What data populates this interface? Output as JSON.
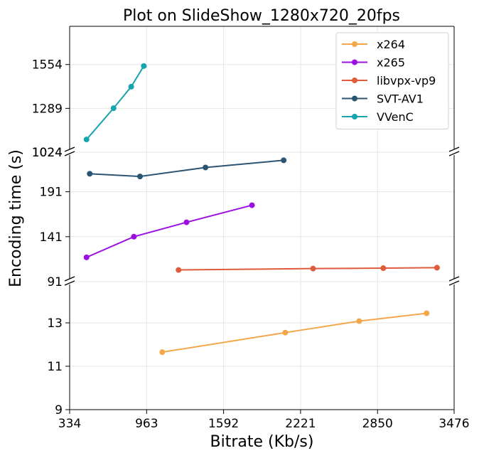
{
  "chart_data": {
    "type": "line",
    "title": "Plot on SlideShow_1280x720_20fps",
    "xlabel": "Bitrate (Kb/s)",
    "ylabel": "Encoding time (s)",
    "xlim": [
      334,
      3476
    ],
    "xticks": [
      "334",
      "963",
      "1592",
      "2221",
      "2850",
      "3476"
    ],
    "grid": true,
    "legend_position": "top-right",
    "broken_y_axis": true,
    "panels": [
      {
        "name": "top",
        "ylim": [
          1024,
          1785
        ],
        "yticks": [
          "1024",
          "1289",
          "1554"
        ]
      },
      {
        "name": "middle",
        "ylim": [
          91,
          235
        ],
        "yticks": [
          "91",
          "141",
          "191"
        ],
        "top_tick_label": "1024"
      },
      {
        "name": "bottom",
        "ylim": [
          9,
          14.9
        ],
        "yticks": [
          "9",
          "11",
          "13"
        ]
      }
    ],
    "series": [
      {
        "name": "x264",
        "color": "#F4A64A",
        "panel": "bottom",
        "x": [
          1091,
          2096,
          2700,
          3251
        ],
        "y": [
          11.65,
          12.55,
          13.08,
          13.44
        ]
      },
      {
        "name": "x265",
        "color": "#9B0FE0",
        "panel": "middle",
        "x": [
          472,
          859,
          1289,
          1824
        ],
        "y": [
          118,
          141,
          157,
          176
        ]
      },
      {
        "name": "libvpx-vp9",
        "color": "#E05A3C",
        "panel": "middle",
        "x": [
          1224,
          2323,
          2897,
          3336
        ],
        "y": [
          104,
          105.5,
          106,
          106.5
        ]
      },
      {
        "name": "SVT-AV1",
        "color": "#2C5573",
        "panel": "middle",
        "x": [
          498,
          909,
          1444,
          2083
        ],
        "y": [
          211,
          208,
          218,
          226
        ]
      },
      {
        "name": "VVenC",
        "color": "#16A5AD",
        "panel": "top",
        "x": [
          472,
          693,
          837,
          940
        ],
        "y": [
          1101,
          1290,
          1420,
          1545
        ]
      }
    ]
  }
}
